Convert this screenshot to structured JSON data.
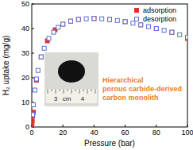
{
  "chart_data": {
    "type": "scatter",
    "x_label": "Pressure (bar)",
    "y_label": "H₂ uptake (mg/g)",
    "xlim": [
      0,
      100
    ],
    "xticks": [
      0,
      20,
      40,
      60,
      80,
      100
    ],
    "ylim": [
      0,
      50
    ],
    "yticks": [
      0,
      10,
      20,
      30,
      40,
      50
    ],
    "legend": "top-right",
    "series": [
      {
        "name": "adsorption",
        "color": "#e0302a",
        "marker": "square",
        "x": [
          0.1,
          0.3,
          0.6,
          1,
          3,
          6,
          10,
          15,
          20,
          25,
          30,
          40,
          50,
          60,
          70,
          80,
          90,
          100
        ],
        "values": [
          1,
          2.5,
          4.5,
          6,
          19,
          28.5,
          35,
          39.5,
          41.8,
          43,
          43.7,
          44.1,
          43.7,
          42.8,
          41.5,
          40,
          38.5,
          36
        ]
      },
      {
        "name": "desorption",
        "color": "#5a6fd8",
        "marker": "open_square",
        "x": [
          100,
          95,
          90,
          85,
          80,
          75,
          70,
          65,
          60,
          55,
          50,
          45,
          40,
          35,
          30,
          25,
          20,
          17,
          14,
          11,
          8,
          6,
          4,
          3,
          2,
          1,
          0.5
        ],
        "values": [
          36.5,
          37.5,
          38.5,
          39.3,
          40,
          40.8,
          41.5,
          42.2,
          42.8,
          43.3,
          43.7,
          44,
          44.1,
          44,
          43.7,
          43,
          41.8,
          40.5,
          38.5,
          36,
          32,
          28.5,
          23,
          19.5,
          15,
          9,
          5
        ]
      }
    ],
    "annotations": {
      "caption": [
        "Hierarchical",
        "porous carbide-derived",
        "carbon monolith"
      ],
      "caption_color": "#f07c1e",
      "ruler": [
        "3",
        "cm",
        "4"
      ]
    }
  }
}
